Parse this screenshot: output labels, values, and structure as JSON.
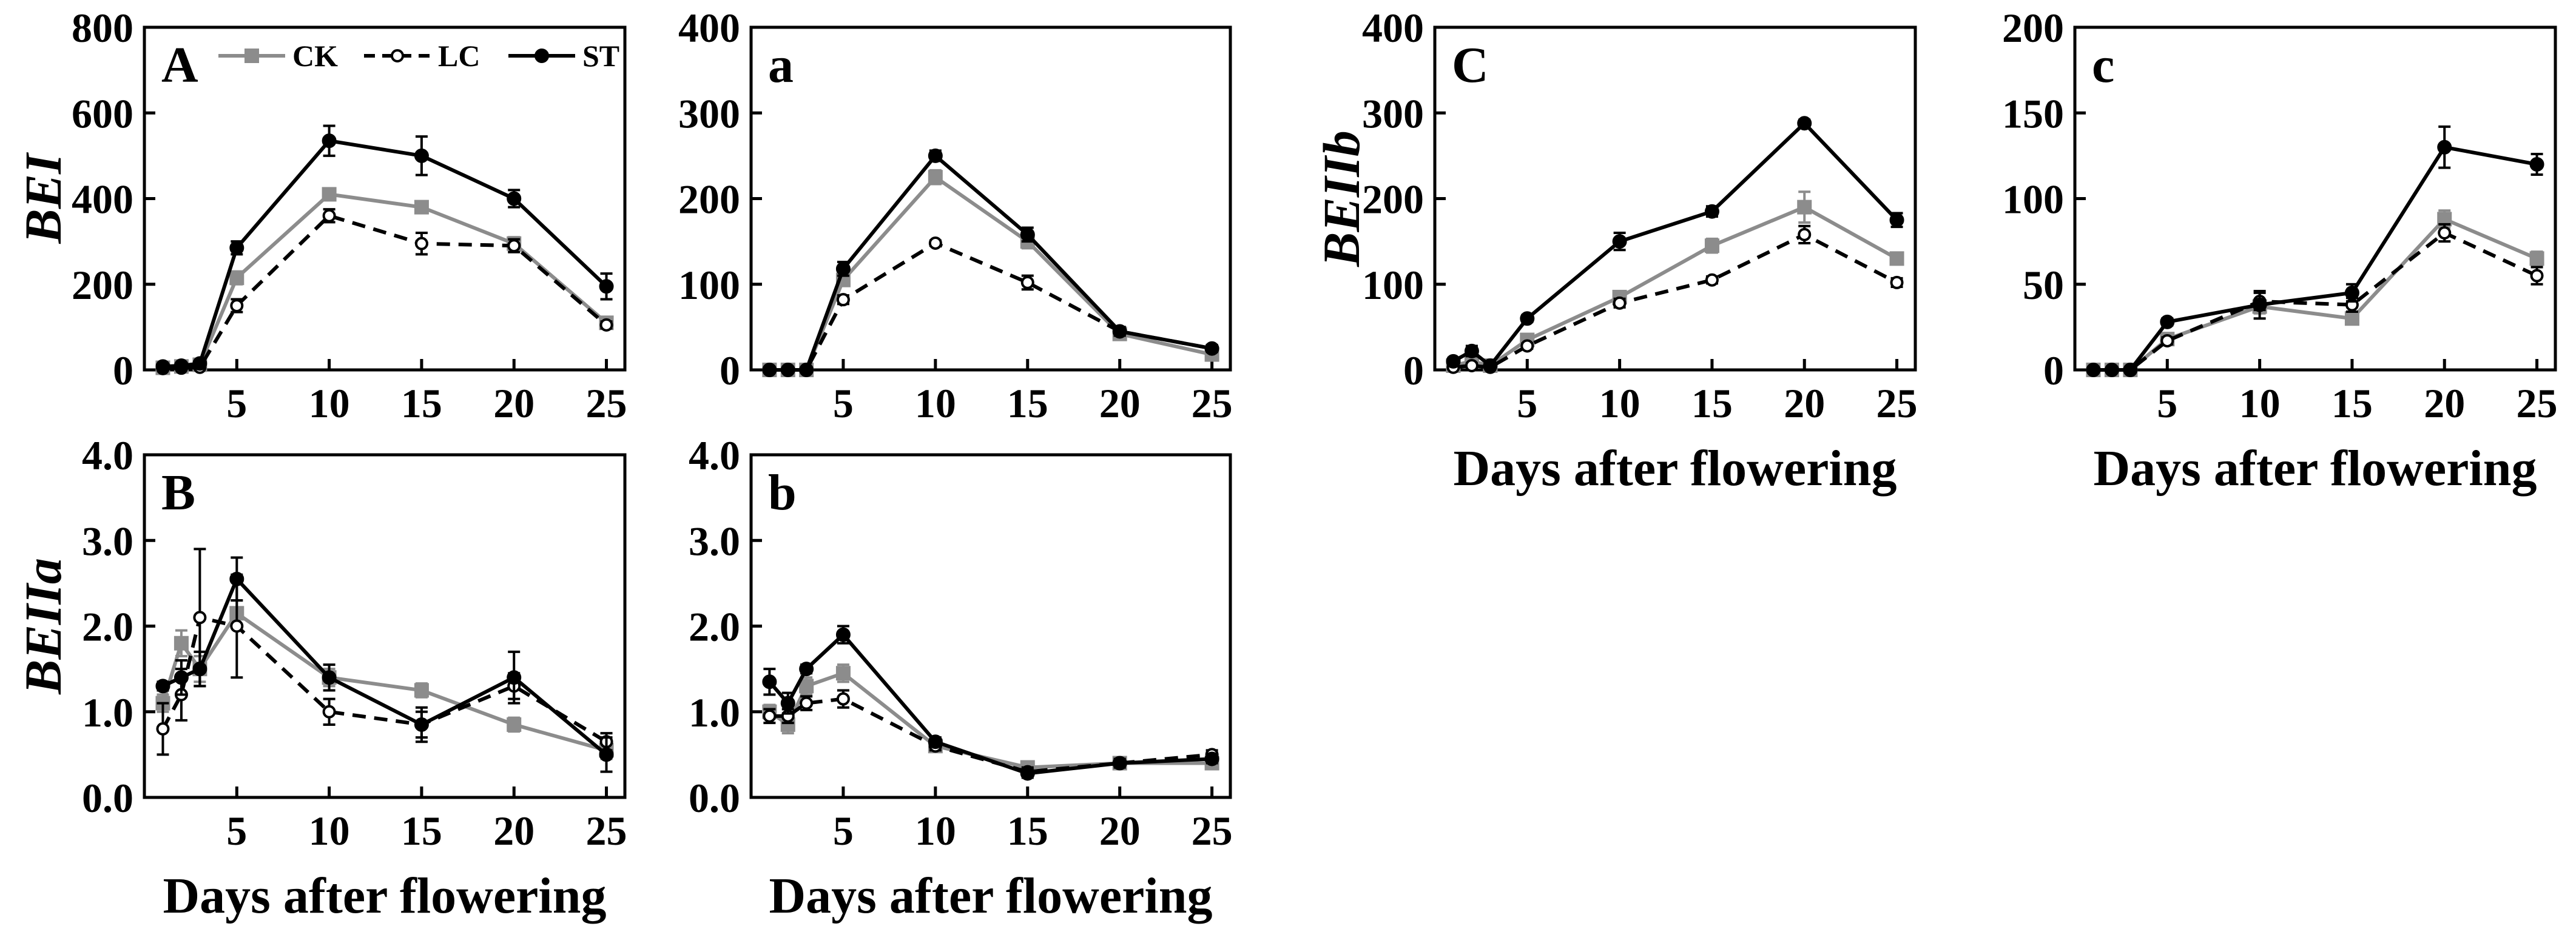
{
  "chart_data": [
    {
      "panel": "A",
      "type": "line",
      "ylabel": "BEI",
      "xlabel": "",
      "ylim": [
        0,
        800
      ],
      "yticks": [
        0,
        200,
        400,
        600,
        800
      ],
      "ytick_labels": [
        "0",
        "200",
        "400",
        "600",
        "800"
      ],
      "xlim": [
        0,
        26
      ],
      "xticks": [
        5,
        10,
        15,
        20,
        25
      ],
      "xtick_labels": [
        "5",
        "10",
        "15",
        "20",
        "25"
      ],
      "x": [
        1,
        2,
        3,
        5,
        10,
        15,
        20,
        25
      ],
      "series": [
        {
          "name": "CK",
          "values": [
            5,
            8,
            12,
            215,
            410,
            380,
            295,
            110
          ],
          "errors": [
            2,
            3,
            4,
            15,
            8,
            8,
            15,
            8
          ],
          "color": "#8c8c8c",
          "marker": "square",
          "dash": "solid"
        },
        {
          "name": "LC",
          "values": [
            3,
            4,
            6,
            150,
            360,
            295,
            290,
            105
          ],
          "errors": [
            2,
            2,
            3,
            15,
            15,
            25,
            15,
            8
          ],
          "color": "#000000",
          "marker": "open-circle",
          "dash": "dashed"
        },
        {
          "name": "ST",
          "values": [
            8,
            10,
            15,
            285,
            535,
            500,
            400,
            195
          ],
          "errors": [
            3,
            4,
            5,
            15,
            35,
            45,
            20,
            30
          ],
          "color": "#000000",
          "marker": "filled-circle",
          "dash": "solid"
        }
      ]
    },
    {
      "panel": "a",
      "type": "line",
      "ylabel": "",
      "xlabel": "",
      "ylim": [
        0,
        400
      ],
      "yticks": [
        0,
        100,
        200,
        300,
        400
      ],
      "ytick_labels": [
        "0",
        "100",
        "200",
        "300",
        "400"
      ],
      "xlim": [
        0,
        26
      ],
      "xticks": [
        5,
        10,
        15,
        20,
        25
      ],
      "xtick_labels": [
        "5",
        "10",
        "15",
        "20",
        "25"
      ],
      "x": [
        1,
        2,
        3,
        5,
        10,
        15,
        20,
        25
      ],
      "series": [
        {
          "name": "CK",
          "values": [
            0,
            0,
            0,
            105,
            225,
            150,
            42,
            18
          ],
          "errors": [
            1,
            1,
            1,
            6,
            8,
            8,
            5,
            5
          ],
          "color": "#8c8c8c",
          "marker": "square",
          "dash": "solid"
        },
        {
          "name": "LC",
          "values": [
            0,
            0,
            0,
            82,
            148,
            102,
            45,
            25
          ],
          "errors": [
            1,
            1,
            1,
            5,
            3,
            8,
            5,
            4
          ],
          "color": "#000000",
          "marker": "open-circle",
          "dash": "dashed"
        },
        {
          "name": "ST",
          "values": [
            0,
            0,
            0,
            118,
            250,
            158,
            45,
            25
          ],
          "errors": [
            1,
            1,
            1,
            8,
            6,
            8,
            5,
            4
          ],
          "color": "#000000",
          "marker": "filled-circle",
          "dash": "solid"
        }
      ]
    },
    {
      "panel": "C",
      "type": "line",
      "ylabel": "BEIIb",
      "xlabel": "Days after flowering",
      "ylim": [
        0,
        400
      ],
      "yticks": [
        0,
        100,
        200,
        300,
        400
      ],
      "ytick_labels": [
        "0",
        "100",
        "200",
        "300",
        "400"
      ],
      "xlim": [
        0,
        26
      ],
      "xticks": [
        5,
        10,
        15,
        20,
        25
      ],
      "xtick_labels": [
        "5",
        "10",
        "15",
        "20",
        "25"
      ],
      "x": [
        1,
        2,
        3,
        5,
        10,
        15,
        20,
        25
      ],
      "series": [
        {
          "name": "CK",
          "values": [
            5,
            10,
            5,
            35,
            85,
            145,
            190,
            130
          ],
          "errors": [
            3,
            5,
            3,
            4,
            5,
            8,
            18,
            6
          ],
          "color": "#8c8c8c",
          "marker": "square",
          "dash": "solid"
        },
        {
          "name": "LC",
          "values": [
            3,
            5,
            3,
            28,
            78,
            105,
            158,
            102
          ],
          "errors": [
            2,
            3,
            2,
            3,
            5,
            4,
            10,
            5
          ],
          "color": "#000000",
          "marker": "open-circle",
          "dash": "dashed"
        },
        {
          "name": "ST",
          "values": [
            10,
            22,
            5,
            60,
            150,
            185,
            288,
            175
          ],
          "errors": [
            4,
            6,
            3,
            4,
            10,
            6,
            4,
            8
          ],
          "color": "#000000",
          "marker": "filled-circle",
          "dash": "solid"
        }
      ]
    },
    {
      "panel": "c",
      "type": "line",
      "ylabel": "",
      "xlabel": "Days after flowering",
      "ylim": [
        0,
        200
      ],
      "yticks": [
        0,
        50,
        100,
        150,
        200
      ],
      "ytick_labels": [
        "0",
        "50",
        "100",
        "150",
        "200"
      ],
      "xlim": [
        0,
        26
      ],
      "xticks": [
        5,
        10,
        15,
        20,
        25
      ],
      "xtick_labels": [
        "5",
        "10",
        "15",
        "20",
        "25"
      ],
      "x": [
        1,
        2,
        3,
        5,
        10,
        15,
        20,
        25
      ],
      "series": [
        {
          "name": "CK",
          "values": [
            0,
            0,
            0,
            18,
            37,
            30,
            88,
            65
          ],
          "errors": [
            1,
            1,
            1,
            2,
            4,
            3,
            5,
            4
          ],
          "color": "#8c8c8c",
          "marker": "square",
          "dash": "solid"
        },
        {
          "name": "LC",
          "values": [
            0,
            0,
            0,
            17,
            40,
            38,
            80,
            55
          ],
          "errors": [
            1,
            1,
            1,
            2,
            5,
            4,
            5,
            5
          ],
          "color": "#000000",
          "marker": "open-circle",
          "dash": "dashed"
        },
        {
          "name": "ST",
          "values": [
            0,
            0,
            0,
            28,
            38,
            45,
            130,
            120
          ],
          "errors": [
            1,
            1,
            1,
            2,
            8,
            5,
            12,
            6
          ],
          "color": "#000000",
          "marker": "filled-circle",
          "dash": "solid"
        }
      ]
    },
    {
      "panel": "B",
      "type": "line",
      "ylabel": "BEIIa",
      "xlabel": "Days after flowering",
      "ylim": [
        0,
        4
      ],
      "yticks": [
        0,
        1,
        2,
        3,
        4
      ],
      "ytick_labels": [
        "0.0",
        "1.0",
        "2.0",
        "3.0",
        "4.0"
      ],
      "xlim": [
        0,
        26
      ],
      "xticks": [
        5,
        10,
        15,
        20,
        25
      ],
      "xtick_labels": [
        "5",
        "10",
        "15",
        "20",
        "25"
      ],
      "x": [
        1,
        2,
        3,
        5,
        10,
        15,
        20,
        25
      ],
      "series": [
        {
          "name": "CK",
          "values": [
            1.1,
            1.8,
            1.5,
            2.15,
            1.4,
            1.25,
            0.85,
            0.55
          ],
          "errors": [
            0.1,
            0.15,
            0.15,
            0.15,
            0.1,
            0.08,
            0.08,
            0.1
          ],
          "color": "#8c8c8c",
          "marker": "square",
          "dash": "solid"
        },
        {
          "name": "LC",
          "values": [
            0.8,
            1.2,
            2.1,
            2.0,
            1.0,
            0.85,
            1.3,
            0.65
          ],
          "errors": [
            0.3,
            0.3,
            0.8,
            0.6,
            0.15,
            0.15,
            0.15,
            0.1
          ],
          "color": "#000000",
          "marker": "open-circle",
          "dash": "dashed"
        },
        {
          "name": "ST",
          "values": [
            1.3,
            1.4,
            1.5,
            2.55,
            1.4,
            0.85,
            1.4,
            0.5
          ],
          "errors": [
            0.05,
            0.2,
            0.2,
            0.25,
            0.15,
            0.2,
            0.3,
            0.2
          ],
          "color": "#000000",
          "marker": "filled-circle",
          "dash": "solid"
        }
      ]
    },
    {
      "panel": "b",
      "type": "line",
      "ylabel": "",
      "xlabel": "Days after flowering",
      "ylim": [
        0,
        4
      ],
      "yticks": [
        0,
        1,
        2,
        3,
        4
      ],
      "ytick_labels": [
        "0.0",
        "1.0",
        "2.0",
        "3.0",
        "4.0"
      ],
      "xlim": [
        0,
        26
      ],
      "xticks": [
        5,
        10,
        15,
        20,
        25
      ],
      "xtick_labels": [
        "5",
        "10",
        "15",
        "20",
        "25"
      ],
      "x": [
        1,
        2,
        3,
        5,
        10,
        15,
        20,
        25
      ],
      "series": [
        {
          "name": "CK",
          "values": [
            1.0,
            0.85,
            1.3,
            1.45,
            0.6,
            0.35,
            0.4,
            0.4
          ],
          "errors": [
            0.08,
            0.1,
            0.1,
            0.1,
            0.05,
            0.05,
            0.05,
            0.05
          ],
          "color": "#8c8c8c",
          "marker": "square",
          "dash": "solid"
        },
        {
          "name": "LC",
          "values": [
            0.95,
            0.95,
            1.1,
            1.15,
            0.6,
            0.3,
            0.4,
            0.5
          ],
          "errors": [
            0.08,
            0.08,
            0.08,
            0.1,
            0.05,
            0.05,
            0.05,
            0.05
          ],
          "color": "#000000",
          "marker": "open-circle",
          "dash": "dashed"
        },
        {
          "name": "ST",
          "values": [
            1.35,
            1.1,
            1.5,
            1.9,
            0.65,
            0.28,
            0.4,
            0.45
          ],
          "errors": [
            0.15,
            0.12,
            0.05,
            0.1,
            0.05,
            0.05,
            0.05,
            0.05
          ],
          "color": "#000000",
          "marker": "filled-circle",
          "dash": "solid"
        }
      ]
    }
  ],
  "legend": [
    {
      "name": "CK",
      "color": "#8c8c8c",
      "marker": "square",
      "dash": "solid"
    },
    {
      "name": "LC",
      "color": "#000000",
      "marker": "open-circle",
      "dash": "dashed"
    },
    {
      "name": "ST",
      "color": "#000000",
      "marker": "filled-circle",
      "dash": "solid"
    }
  ]
}
